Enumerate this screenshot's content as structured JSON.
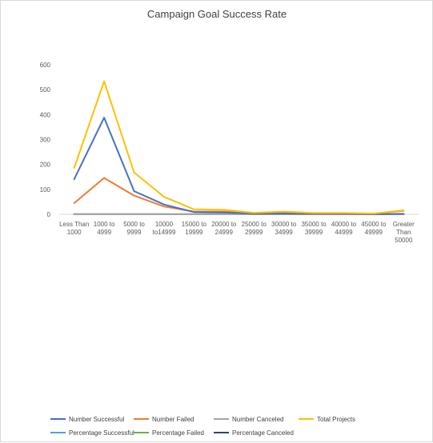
{
  "chart_data": {
    "type": "line",
    "title": "Campaign Goal Success Rate",
    "xlabel": "",
    "ylabel": "",
    "ylim": [
      0,
      600
    ],
    "yticks": [
      0,
      100,
      200,
      300,
      400,
      500,
      600
    ],
    "grid": false,
    "legend_position": "bottom",
    "categories": [
      [
        "Less Than",
        "1000"
      ],
      [
        "1000 to",
        "4999"
      ],
      [
        "5000 to",
        "9999"
      ],
      [
        "10000",
        "to14999"
      ],
      [
        "15000 to",
        "19999"
      ],
      [
        "20000 to",
        "24999"
      ],
      [
        "25000 to",
        "29999"
      ],
      [
        "30000 to",
        "34999"
      ],
      [
        "35000 to",
        "39999"
      ],
      [
        "40000 to",
        "44999"
      ],
      [
        "45000 to",
        "49999"
      ],
      [
        "Greater",
        "Than",
        "50000"
      ]
    ],
    "series": [
      {
        "name": "Number Successful",
        "color": "#4472c4",
        "values": [
          141,
          388,
          93,
          39,
          9,
          7,
          3,
          3,
          2,
          2,
          0,
          2
        ]
      },
      {
        "name": "Number Failed",
        "color": "#ed7d31",
        "values": [
          45,
          146,
          75,
          31,
          11,
          11,
          3,
          8,
          3,
          3,
          3,
          14
        ]
      },
      {
        "name": "Number Canceled",
        "color": "#a5a5a5",
        "values": [
          0,
          0,
          0,
          0,
          0,
          0,
          0,
          0,
          0,
          0,
          0,
          0
        ]
      },
      {
        "name": "Total Projects",
        "color": "#ffc000",
        "values": [
          186,
          534,
          168,
          70,
          20,
          18,
          6,
          11,
          5,
          5,
          3,
          16
        ]
      },
      {
        "name": "Percentage Successful",
        "color": "#5b9bd5",
        "values": [
          0.76,
          0.73,
          0.55,
          0.56,
          0.45,
          0.39,
          0.5,
          0.27,
          0.4,
          0.4,
          0,
          0.13
        ]
      },
      {
        "name": "Percentage Failed",
        "color": "#70ad47",
        "values": [
          0.24,
          0.27,
          0.45,
          0.44,
          0.55,
          0.61,
          0.5,
          0.73,
          0.6,
          0.6,
          1,
          0.88
        ]
      },
      {
        "name": "Percentage Canceled",
        "color": "#264478",
        "values": [
          0,
          0,
          0,
          0,
          0,
          0,
          0,
          0,
          0,
          0,
          0,
          0
        ]
      }
    ]
  }
}
